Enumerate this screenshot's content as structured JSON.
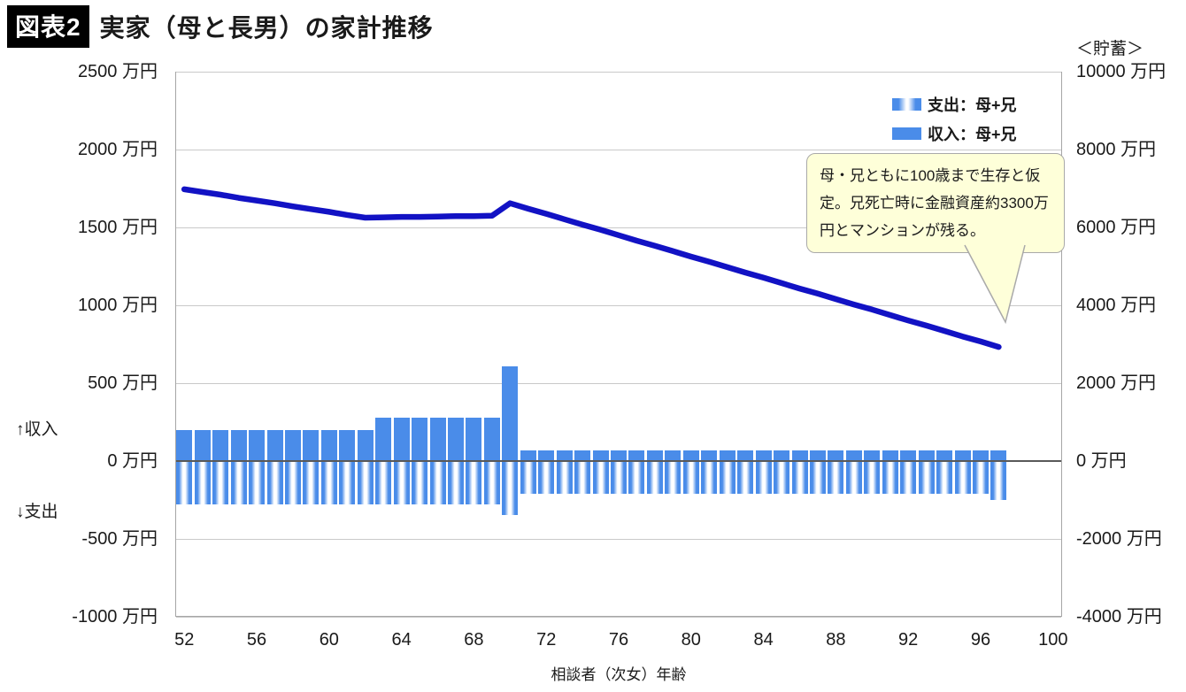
{
  "title": {
    "badge": "図表2",
    "text": "実家（母と長男）の家計推移"
  },
  "side_labels": {
    "income": "↑収入",
    "expense": "↓支出"
  },
  "colors": {
    "bar_blue": "#4a8ce9",
    "line_blue": "#1212c4",
    "annotation_bg": "#feffd9",
    "annotation_border": "#a9a9a9",
    "grid": "#c9c9c9",
    "axis_border": "#a6a6a6",
    "zero_line": "#595959",
    "badge_bg": "#000000"
  },
  "chart_data": {
    "type": "bar",
    "subtype": "bar-line-combo",
    "x": [
      52,
      53,
      54,
      55,
      56,
      57,
      58,
      59,
      60,
      61,
      62,
      63,
      64,
      65,
      66,
      67,
      68,
      69,
      70,
      71,
      72,
      73,
      74,
      75,
      76,
      77,
      78,
      79,
      80,
      81,
      82,
      83,
      84,
      85,
      86,
      87,
      88,
      89,
      90,
      91,
      92,
      93,
      94,
      95,
      96,
      97
    ],
    "x_axis": {
      "label": "相談者（次女）年齢",
      "range": [
        52,
        100
      ],
      "ticks": [
        52,
        56,
        60,
        64,
        68,
        72,
        76,
        80,
        84,
        88,
        92,
        96,
        100
      ]
    },
    "left_axis": {
      "unit": "万円",
      "range": [
        -1000,
        2500
      ],
      "ticks": [
        2500,
        2000,
        1500,
        1000,
        500,
        0,
        -500,
        -1000
      ]
    },
    "right_axis": {
      "title": "＜貯蓄＞",
      "unit": "万円",
      "range": [
        -4000,
        10000
      ],
      "ticks": [
        10000,
        8000,
        6000,
        4000,
        2000,
        0,
        -2000,
        -4000
      ]
    },
    "series": [
      {
        "id": "expense",
        "name": "支出：母+兄",
        "type": "bar",
        "pattern": "striped",
        "axis": "left",
        "values": [
          -280,
          -280,
          -280,
          -280,
          -280,
          -280,
          -280,
          -280,
          -280,
          -280,
          -280,
          -280,
          -280,
          -280,
          -280,
          -280,
          -280,
          -280,
          -345,
          -210,
          -210,
          -210,
          -210,
          -210,
          -210,
          -210,
          -210,
          -210,
          -210,
          -210,
          -210,
          -210,
          -210,
          -210,
          -210,
          -210,
          -210,
          -210,
          -210,
          -210,
          -210,
          -210,
          -210,
          -210,
          -210,
          -250
        ]
      },
      {
        "id": "income",
        "name": "収入：母+兄",
        "type": "bar",
        "pattern": "solid",
        "axis": "left",
        "values": [
          200,
          200,
          200,
          200,
          200,
          200,
          200,
          200,
          200,
          200,
          200,
          280,
          280,
          280,
          280,
          280,
          280,
          280,
          610,
          70,
          70,
          70,
          70,
          70,
          70,
          70,
          70,
          70,
          70,
          70,
          70,
          70,
          70,
          70,
          70,
          70,
          70,
          70,
          70,
          70,
          70,
          70,
          70,
          70,
          70,
          70
        ]
      },
      {
        "id": "savings",
        "name": "貯蓄",
        "type": "line",
        "axis": "right",
        "values": [
          6980,
          6910,
          6840,
          6760,
          6690,
          6620,
          6540,
          6470,
          6400,
          6320,
          6250,
          6260,
          6270,
          6270,
          6280,
          6290,
          6290,
          6300,
          6620,
          6480,
          6350,
          6210,
          6070,
          5940,
          5800,
          5660,
          5530,
          5390,
          5250,
          5120,
          4980,
          4840,
          4710,
          4570,
          4430,
          4300,
          4160,
          4020,
          3890,
          3750,
          3610,
          3480,
          3340,
          3200,
          3070,
          2930
        ]
      }
    ],
    "legend_position": "top-right",
    "grid": true,
    "annotation": "母・兄ともに100歳まで生存と仮定。兄死亡時に金融資産約3300万円とマンションが残る。"
  }
}
